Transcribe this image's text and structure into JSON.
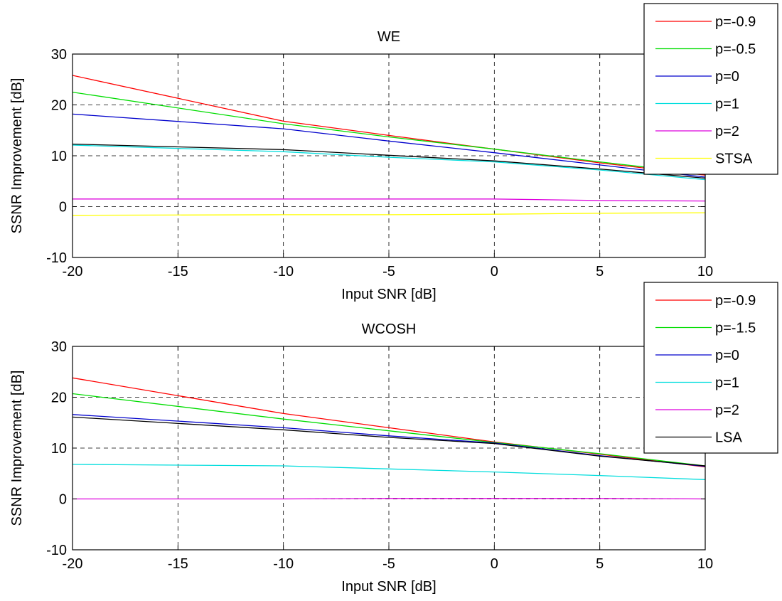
{
  "chart_data": [
    {
      "type": "line",
      "title": "WE",
      "xlabel": "Input SNR [dB]",
      "ylabel": "SSNR Improvement [dB]",
      "xlim": [
        -20,
        10
      ],
      "ylim": [
        -10,
        30
      ],
      "xticks": [
        -20,
        -15,
        -10,
        -5,
        0,
        5,
        10
      ],
      "yticks": [
        -10,
        0,
        10,
        20,
        30
      ],
      "grid": true,
      "legend_position": "top-right",
      "x": [
        -20,
        -10,
        -5,
        0,
        5,
        10
      ],
      "series": [
        {
          "name": "p=-0.9",
          "color": "#ff0000",
          "values": [
            25.8,
            16.8,
            14.0,
            11.3,
            8.6,
            6.2
          ]
        },
        {
          "name": "p=-0.5",
          "color": "#00dd00",
          "values": [
            22.5,
            16.3,
            13.7,
            11.3,
            8.8,
            6.4
          ]
        },
        {
          "name": "p=0",
          "color": "#0000cc",
          "values": [
            18.2,
            15.3,
            12.9,
            10.6,
            8.2,
            5.8
          ]
        },
        {
          "name": "p=1",
          "color": "#00dddd",
          "values": [
            12.1,
            10.8,
            9.7,
            8.8,
            7.2,
            5.3
          ]
        },
        {
          "name": "p=2",
          "color": "#dd00dd",
          "values": [
            1.5,
            1.5,
            1.5,
            1.5,
            1.2,
            1.1
          ]
        },
        {
          "name": "STSA",
          "color": "#ffff00",
          "values": [
            -1.7,
            -1.6,
            -1.6,
            -1.5,
            -1.3,
            -1.2
          ]
        },
        {
          "name": "",
          "color": "#000000",
          "values": [
            12.3,
            11.2,
            10.1,
            9.0,
            7.4,
            5.6
          ]
        }
      ]
    },
    {
      "type": "line",
      "title": "WCOSH",
      "xlabel": "Input SNR [dB]",
      "ylabel": "SSNR Improvement [dB]",
      "xlim": [
        -20,
        10
      ],
      "ylim": [
        -10,
        30
      ],
      "xticks": [
        -20,
        -15,
        -10,
        -5,
        0,
        5,
        10
      ],
      "yticks": [
        -10,
        0,
        10,
        20,
        30
      ],
      "grid": true,
      "legend_position": "top-right",
      "x": [
        -20,
        -10,
        -5,
        0,
        5,
        10
      ],
      "series": [
        {
          "name": "p=-0.9",
          "color": "#ff0000",
          "values": [
            23.8,
            16.8,
            14.0,
            11.2,
            8.8,
            6.3
          ]
        },
        {
          "name": "p=-1.5",
          "color": "#00dd00",
          "values": [
            20.7,
            15.7,
            13.4,
            11.1,
            8.9,
            6.5
          ]
        },
        {
          "name": "p=0",
          "color": "#0000cc",
          "values": [
            16.6,
            14.0,
            12.4,
            11.0,
            8.5,
            6.4
          ]
        },
        {
          "name": "p=1",
          "color": "#00dddd",
          "values": [
            6.8,
            6.5,
            5.9,
            5.3,
            4.6,
            3.8
          ]
        },
        {
          "name": "p=2",
          "color": "#dd00dd",
          "values": [
            0.0,
            0.0,
            0.1,
            0.1,
            0.1,
            0.0
          ]
        },
        {
          "name": "LSA",
          "color": "#000000",
          "values": [
            16.1,
            13.6,
            12.1,
            10.9,
            8.4,
            6.5
          ]
        }
      ]
    }
  ]
}
